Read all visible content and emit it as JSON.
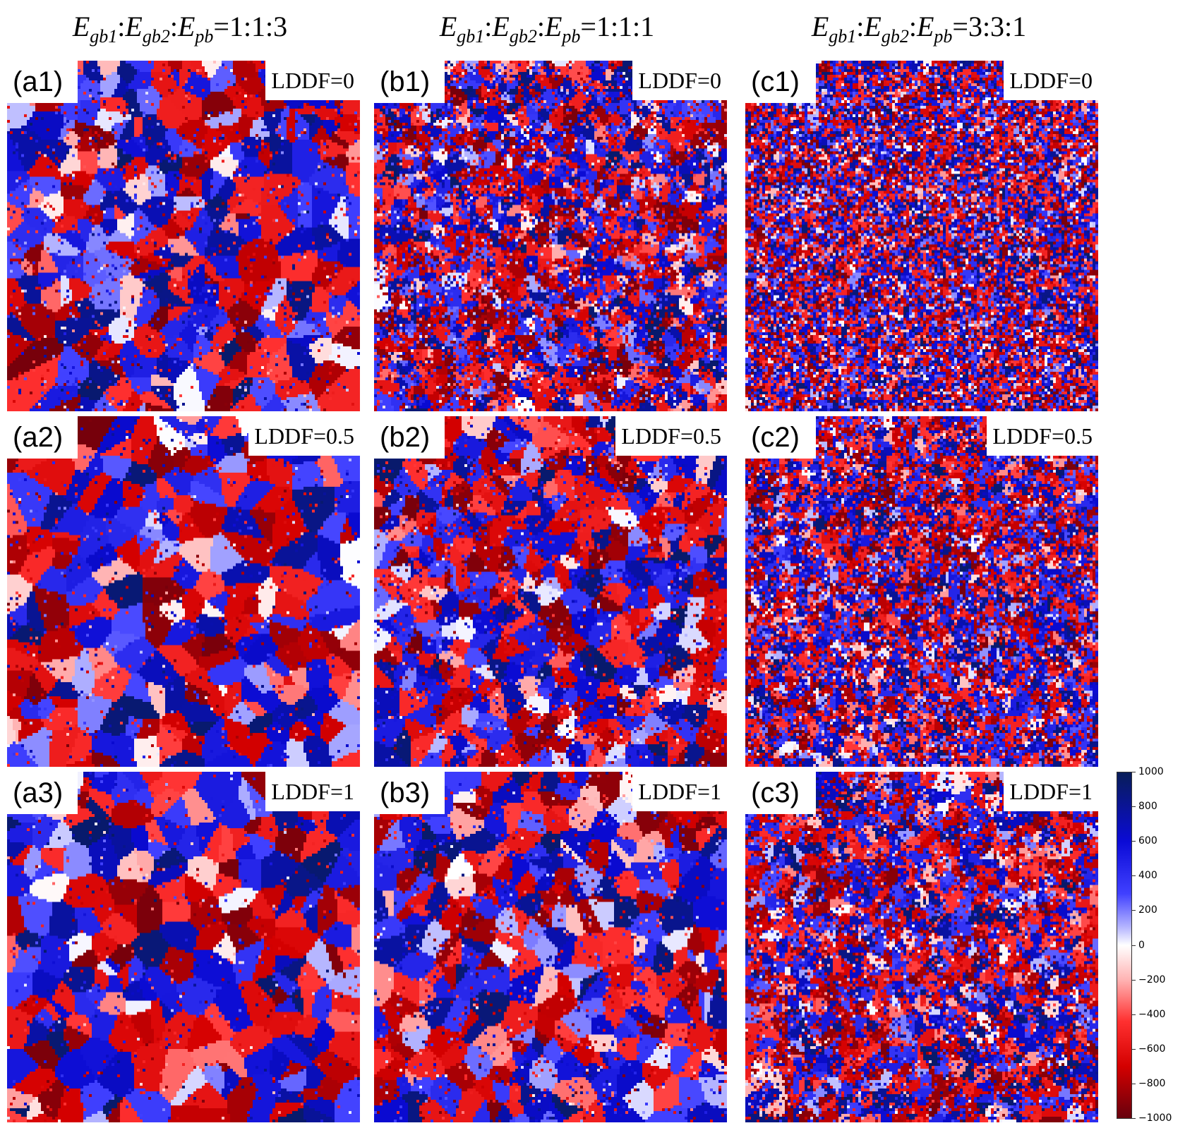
{
  "columns": [
    {
      "label_e": "E",
      "sub1": "gb1",
      "sub2": "gb2",
      "sub3": "pb",
      "colon": ":",
      "eq": "=",
      "ratio": "1:1:3"
    },
    {
      "label_e": "E",
      "sub1": "gb1",
      "sub2": "gb2",
      "sub3": "pb",
      "colon": ":",
      "eq": "=",
      "ratio": "1:1:1"
    },
    {
      "label_e": "E",
      "sub1": "gb1",
      "sub2": "gb2",
      "sub3": "pb",
      "colon": ":",
      "eq": "=",
      "ratio": "3:3:1"
    }
  ],
  "panels": [
    {
      "id": "(a1)",
      "lddf": "LDDF=0"
    },
    {
      "id": "(b1)",
      "lddf": "LDDF=0"
    },
    {
      "id": "(c1)",
      "lddf": "LDDF=0"
    },
    {
      "id": "(a2)",
      "lddf": "LDDF=0.5"
    },
    {
      "id": "(b2)",
      "lddf": "LDDF=0.5"
    },
    {
      "id": "(c2)",
      "lddf": "LDDF=0.5"
    },
    {
      "id": "(a3)",
      "lddf": "LDDF=1"
    },
    {
      "id": "(b3)",
      "lddf": "LDDF=1"
    },
    {
      "id": "(c3)",
      "lddf": "LDDF=1"
    }
  ],
  "chart_data": {
    "type": "heatmap",
    "title": "",
    "rows": [
      "LDDF=0",
      "LDDF=0.5",
      "LDDF=1"
    ],
    "columns": [
      "Egb1:Egb2:Epb=1:1:3",
      "Egb1:Egb2:Epb=1:1:1",
      "Egb1:Egb2:Epb=3:3:1"
    ],
    "colorbar": {
      "min": -1000,
      "max": 1000,
      "ticks": [
        "1000",
        "800",
        "600",
        "400",
        "200",
        "0",
        "−200",
        "−400",
        "−600",
        "−800",
        "−1000"
      ],
      "colormap": "seismic"
    }
  }
}
